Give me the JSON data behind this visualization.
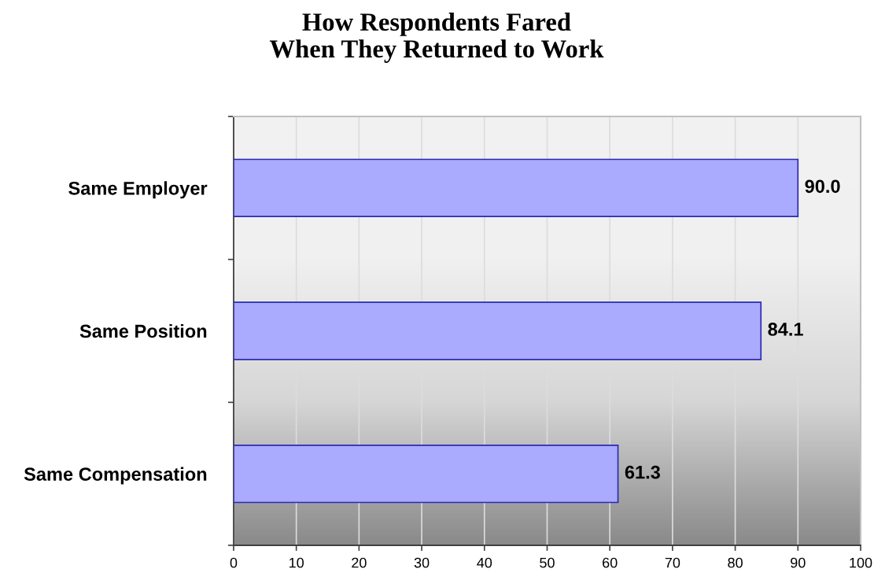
{
  "chart_data": {
    "type": "bar",
    "orientation": "horizontal",
    "title": "How Respondents Fared\nWhen They Returned to Work",
    "categories": [
      "Same Employer",
      "Same Position",
      "Same Compensation"
    ],
    "values": [
      90.0,
      84.1,
      61.3
    ],
    "value_labels": [
      "90.0",
      "84.1",
      "61.3"
    ],
    "color": "#aaaaff",
    "xlim": [
      0,
      100
    ],
    "xticks": [
      0,
      10,
      20,
      30,
      40,
      50,
      60,
      70,
      80,
      90,
      100
    ],
    "grid": "x"
  }
}
